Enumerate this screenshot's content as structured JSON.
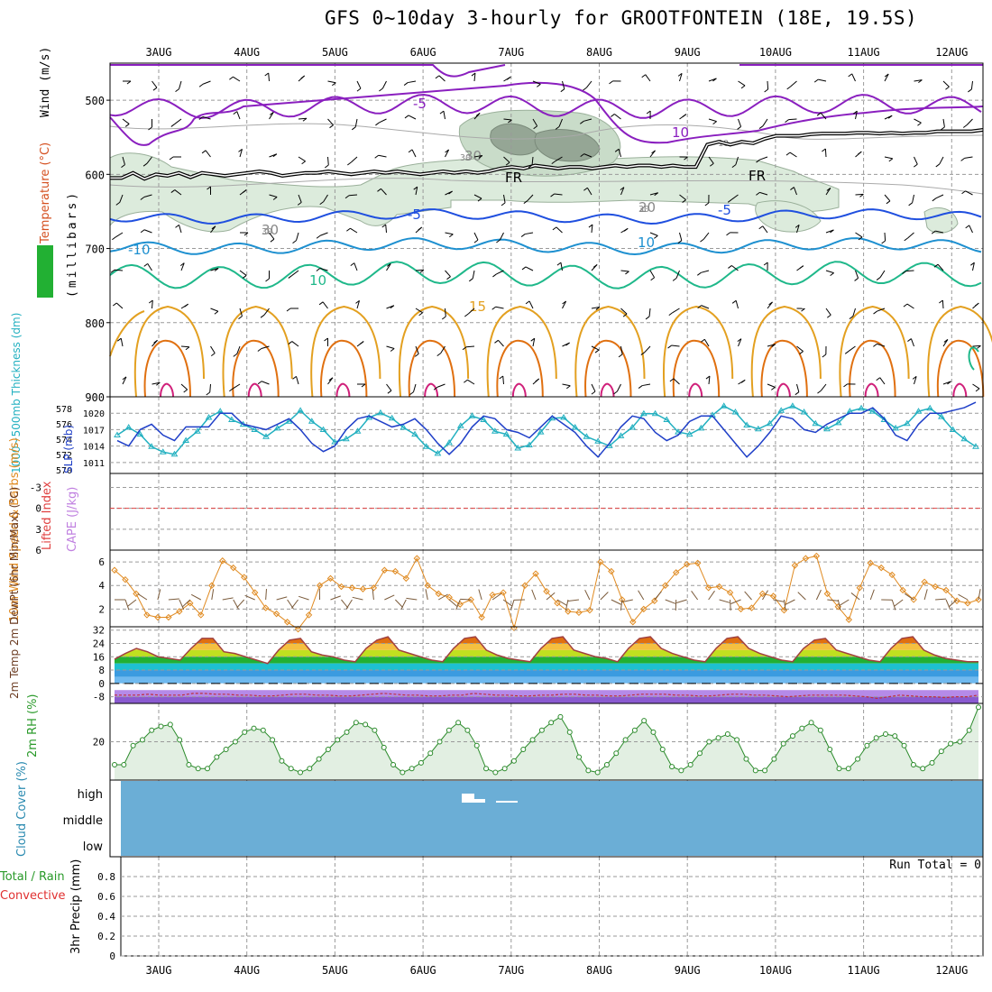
{
  "title": "GFS 0~10day 3-hourly for GROOTFONTEIN (18E, 19.5S)",
  "days": [
    "3AUG",
    "4AUG",
    "5AUG",
    "6AUG",
    "7AUG",
    "8AUG",
    "9AUG",
    "10AUG",
    "11AUG",
    "12AUG"
  ],
  "run_total": "Run Total = 0",
  "colors": {
    "grid": "#9a9a9a",
    "rh_fill": "#dcebdc",
    "rh_dark": "#8a9a8a",
    "temp_purple": "#8a1fbf",
    "temp_blue": "#1f4fdf",
    "temp_cyan": "#1e90d0",
    "temp_green": "#1fb88a",
    "temp_orange": "#e3a020",
    "temp_darkorange": "#e07010",
    "temp_magenta": "#d0207a",
    "thickness": "#22b0c0",
    "slp": "#1f3fc8",
    "wind_speed": "#e08a20",
    "dewpoint": "#a04040",
    "cloud": "#6baed6",
    "precip": "#33a02c"
  },
  "chart_data": [
    {
      "type": "contour",
      "panel": "upper-air",
      "ylabel_parts": [
        "Wind (m/s)",
        "Temperature (°C)",
        "RH (%)"
      ],
      "ylabel_units": "(millibars)",
      "yticks": [
        500,
        600,
        700,
        800,
        900
      ],
      "ylim": [
        900,
        450
      ],
      "contour_labels": [
        "-5",
        "10",
        "-10",
        "30",
        "FR",
        "FR",
        "30",
        "-5",
        "-5",
        "10",
        "10",
        "15",
        "20",
        "30"
      ],
      "freezing_level_mb": [
        605,
        605,
        598,
        606,
        600,
        602,
        598,
        604,
        598,
        600,
        602,
        600,
        598,
        596,
        598,
        602,
        600,
        598,
        598,
        596,
        598,
        600,
        598,
        596,
        598,
        596,
        598,
        600,
        598,
        596,
        598,
        596,
        598,
        596,
        592,
        590,
        592,
        588,
        590,
        592,
        590,
        590,
        592,
        590,
        588,
        590,
        588,
        588,
        590,
        588,
        590,
        590,
        560,
        556,
        560,
        556,
        558,
        552,
        548,
        548,
        548,
        546,
        545,
        545,
        545,
        544,
        544,
        545,
        544,
        545,
        544,
        544,
        542,
        542,
        542,
        542,
        540
      ]
    },
    {
      "type": "line",
      "panel": "thickness-slp",
      "ylabel_left": "1000~500mb Thickness (dm)",
      "ylabel_right": "SLP (mb)",
      "yticks_left": [
        570,
        572,
        574,
        576,
        578
      ],
      "yticks_right": [
        1011,
        1014,
        1017,
        1020
      ],
      "series": [
        {
          "name": "1000~500mb Thickness (dm)",
          "axis": "left",
          "values": [
            574.5,
            575.5,
            574.6,
            573.0,
            572.3,
            572.0,
            573.8,
            575.0,
            576.8,
            577.6,
            576.5,
            575.9,
            575.2,
            574.3,
            575.4,
            576.3,
            577.7,
            576.3,
            575.2,
            573.6,
            574.0,
            575.0,
            576.8,
            577.4,
            576.7,
            575.5,
            574.6,
            573.0,
            572.1,
            573.5,
            575.7,
            577.0,
            576.5,
            575.0,
            574.6,
            572.8,
            573.2,
            574.9,
            576.7,
            576.8,
            575.5,
            574.3,
            573.7,
            573.1,
            574.4,
            575.5,
            577.3,
            577.3,
            576.5,
            574.9,
            574.6,
            575.4,
            577.1,
            578.3,
            577.5,
            575.8,
            575.3,
            576.0,
            577.7,
            578.3,
            577.5,
            576.0,
            575.3,
            576.1,
            577.6,
            578.0,
            577.6,
            576.5,
            575.4,
            576.0,
            577.6,
            578.0,
            576.9,
            575.2,
            574.0,
            573.0
          ]
        },
        {
          "name": "SLP (mb)",
          "axis": "right",
          "values": [
            1015.0,
            1014.0,
            1017.0,
            1018.0,
            1016.0,
            1015.0,
            1017.5,
            1017.5,
            1017.5,
            1020.0,
            1020.0,
            1018.0,
            1017.5,
            1017.0,
            1018.0,
            1019.0,
            1017.0,
            1014.5,
            1013.0,
            1014.0,
            1017.0,
            1019.0,
            1019.5,
            1018.5,
            1017.5,
            1018.0,
            1019.0,
            1017.0,
            1014.5,
            1012.5,
            1014.5,
            1017.5,
            1019.5,
            1019.0,
            1017.0,
            1016.5,
            1015.5,
            1017.5,
            1019.5,
            1018.0,
            1016.5,
            1014.0,
            1012.0,
            1014.5,
            1017.5,
            1019.5,
            1019.0,
            1016.5,
            1015.0,
            1016.0,
            1018.5,
            1019.5,
            1019.5,
            1017.0,
            1014.5,
            1012.0,
            1014.0,
            1016.5,
            1019.5,
            1019.0,
            1017.0,
            1016.5,
            1018.0,
            1019.0,
            1020.0,
            1020.0,
            1021.0,
            1019.0,
            1016.0,
            1015.0,
            1018.0,
            1020.0,
            1020.0,
            1020.5,
            1021.0,
            1022.0
          ]
        }
      ]
    },
    {
      "type": "line",
      "panel": "stability",
      "ylabel": "Lifted Index",
      "ylabel_right": "CAPE (J/kg)",
      "yticks": [
        -3,
        0,
        3,
        6
      ],
      "ylim": [
        -5,
        6
      ],
      "reference_line": 0,
      "values": []
    },
    {
      "type": "line",
      "panel": "10m-wind",
      "ylabel": "10m Wind Speed & Barbs (m/s)",
      "yticks": [
        2,
        4,
        6
      ],
      "ylim": [
        0.5,
        7
      ],
      "values": [
        5.3,
        4.5,
        3.3,
        1.5,
        1.3,
        1.3,
        1.8,
        2.5,
        1.5,
        4.0,
        6.1,
        5.5,
        4.7,
        3.4,
        2.1,
        1.6,
        0.9,
        0.3,
        1.5,
        4.0,
        4.6,
        3.9,
        3.8,
        3.7,
        3.8,
        5.3,
        5.2,
        4.6,
        6.3,
        4.0,
        3.3,
        3.0,
        2.4,
        2.8,
        1.3,
        3.2,
        3.4,
        0.4,
        4.0,
        5.0,
        3.5,
        2.5,
        1.8,
        1.7,
        1.9,
        6.0,
        5.2,
        2.8,
        0.9,
        2.0,
        2.7,
        4.0,
        5.1,
        5.8,
        5.9,
        3.8,
        3.9,
        3.4,
        2.0,
        2.1,
        3.3,
        3.1,
        1.9,
        5.7,
        6.3,
        6.5,
        3.3,
        2.2,
        1.1,
        3.8,
        5.9,
        5.5,
        4.9,
        3.6,
        2.8,
        4.3,
        3.9,
        3.6,
        2.7,
        2.5,
        2.8
      ]
    },
    {
      "type": "area",
      "panel": "2m-temp",
      "ylabel": "2m Temp 2m DewPt (6hr Min/Max) (°C)",
      "yticks": [
        -8,
        0,
        8,
        16,
        24,
        32
      ],
      "ylim": [
        -12,
        34
      ],
      "series": [
        {
          "name": "2m Temp",
          "values": [
            14.5,
            18,
            21,
            19,
            16,
            15,
            14,
            21,
            27,
            27,
            19,
            18,
            16,
            14,
            12,
            20,
            26,
            27,
            19,
            17,
            16,
            14,
            13,
            21,
            26,
            28,
            20,
            18,
            16,
            14,
            13,
            21,
            27,
            28,
            20,
            17,
            15,
            14,
            13,
            21,
            27,
            28,
            20,
            18,
            16,
            15,
            13,
            21,
            27,
            28,
            21,
            18,
            16,
            14,
            13,
            21,
            27,
            28,
            21,
            18,
            16,
            14,
            13,
            21,
            26,
            27,
            20,
            18,
            16,
            14,
            13,
            21,
            27,
            28,
            20,
            17,
            15,
            14,
            13,
            13
          ]
        },
        {
          "name": "2m DewPt",
          "values": [
            -7,
            -7,
            -7,
            -6.5,
            -7,
            -7,
            -7,
            -6,
            -6,
            -6.5,
            -6.5,
            -7,
            -7,
            -7.5,
            -7.5,
            -7,
            -6.5,
            -6.5,
            -7,
            -7,
            -7.5,
            -7.5,
            -7,
            -6.5,
            -6,
            -6.5,
            -7,
            -7,
            -7.5,
            -7.5,
            -7,
            -7,
            -6,
            -6.5,
            -7,
            -7,
            -7.5,
            -7.5,
            -7,
            -7,
            -6.5,
            -6.5,
            -7,
            -7,
            -7.5,
            -7.5,
            -7,
            -6.5,
            -6.5,
            -6.5,
            -7,
            -7,
            -7.5,
            -7.5,
            -7,
            -6.5,
            -6.5,
            -7,
            -7,
            -7.5,
            -8,
            -7.5,
            -7,
            -7,
            -7,
            -7,
            -7.5,
            -8,
            -9,
            -8,
            -7,
            -7.5,
            -8,
            -8,
            -8.5,
            -8,
            -8,
            -7
          ]
        }
      ]
    },
    {
      "type": "area",
      "panel": "2m-rh",
      "ylabel": "2m RH (%)",
      "yticks": [
        20
      ],
      "ylim": [
        0,
        40
      ],
      "values": [
        8,
        8,
        18,
        21,
        26,
        28,
        29,
        21,
        8,
        6,
        6,
        12,
        16,
        20,
        25,
        27,
        26,
        21,
        10,
        6,
        4,
        6,
        11,
        16,
        21,
        25,
        30,
        29,
        26,
        17,
        8,
        4,
        6,
        9,
        14,
        20,
        26,
        30,
        26,
        18,
        6,
        4,
        6,
        10,
        16,
        21,
        26,
        30,
        33,
        25,
        12,
        5,
        4,
        8,
        14,
        21,
        26,
        31,
        25,
        16,
        7,
        5,
        8,
        14,
        20,
        22,
        24,
        21,
        11,
        5,
        5,
        11,
        19,
        23,
        27,
        30,
        26,
        16,
        6,
        6,
        11,
        18,
        22,
        24,
        23,
        18,
        8,
        6,
        9,
        15,
        19,
        20,
        26,
        38
      ]
    },
    {
      "type": "heatmap",
      "panel": "cloud-cover",
      "ylabel": "Cloud Cover (%)",
      "categories": [
        "high",
        "middle",
        "low"
      ]
    },
    {
      "type": "bar",
      "panel": "precip",
      "ylabel": "3hr Precip (mm)",
      "legend": [
        "Total / Rain",
        "Convective"
      ],
      "yticks": [
        0,
        0.2,
        0.4,
        0.6,
        0.8
      ],
      "ylim": [
        0,
        1
      ],
      "values": []
    }
  ]
}
